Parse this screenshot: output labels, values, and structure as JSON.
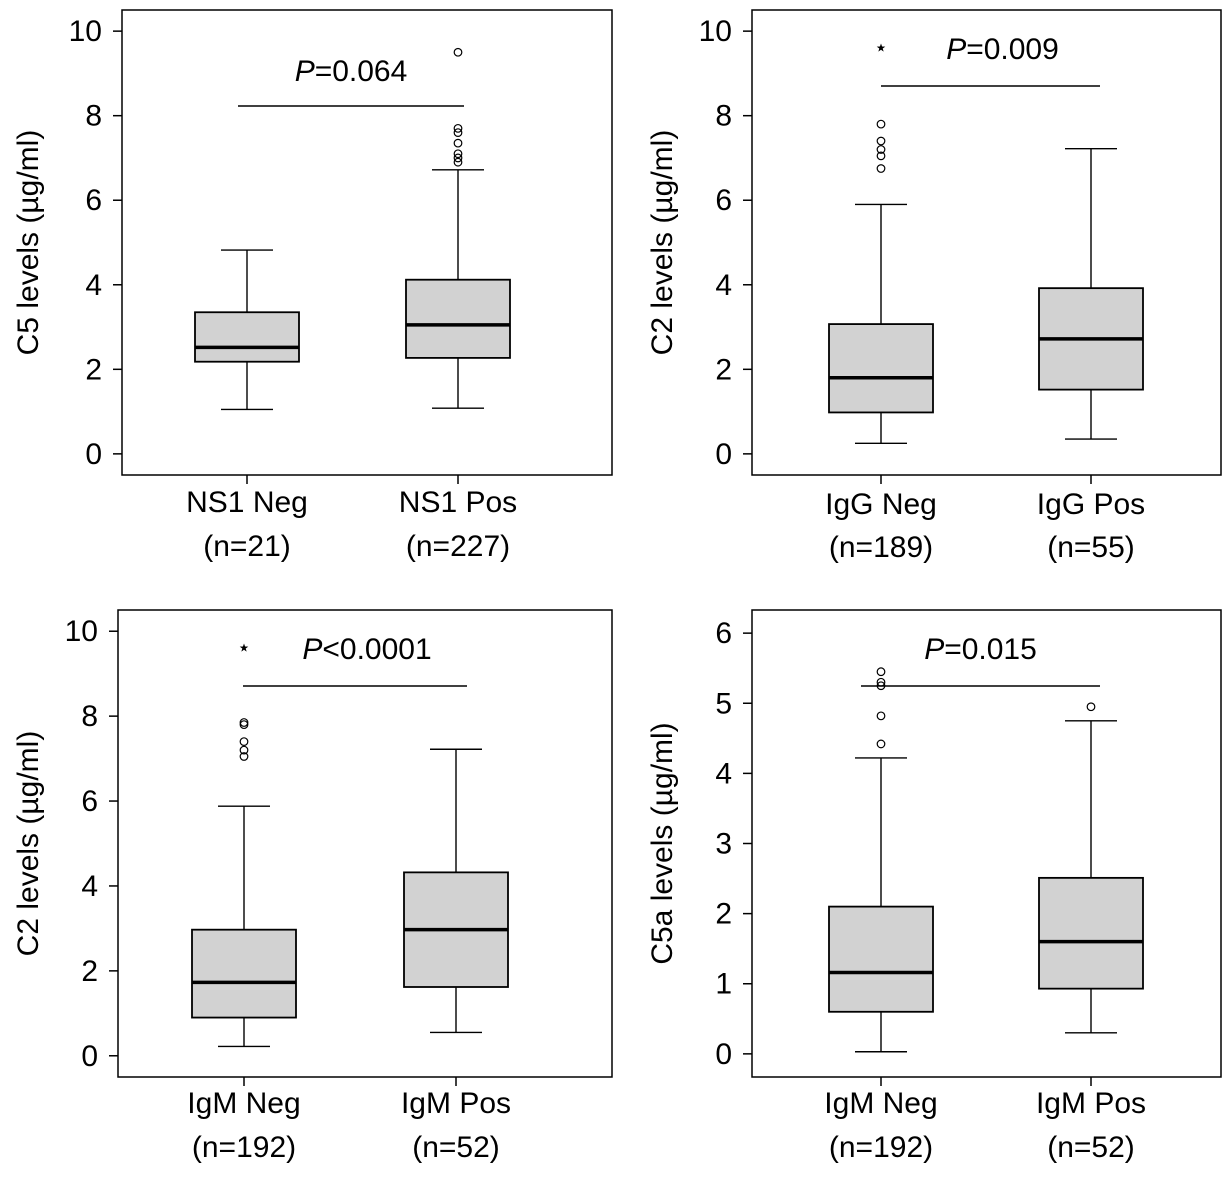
{
  "chart_data": [
    {
      "type": "box",
      "ylabel": "C5 levels (µg/ml)",
      "ylim": [
        -0.5,
        10.5
      ],
      "yticks": [
        0,
        2,
        4,
        6,
        8,
        10
      ],
      "pvalue": {
        "p": "P",
        "rest": "=0.064"
      },
      "star": false,
      "categories": [
        {
          "name": "NS1 Neg",
          "n": "(n=21)",
          "whisker_low": 1.05,
          "q1": 2.18,
          "median": 2.52,
          "q3": 3.35,
          "whisker_high": 4.82,
          "outliers": []
        },
        {
          "name": "NS1 Pos",
          "n": "(n=227)",
          "whisker_low": 1.08,
          "q1": 2.27,
          "median": 3.05,
          "q3": 4.12,
          "whisker_high": 6.72,
          "outliers": [
            6.9,
            7.0,
            7.1,
            7.35,
            7.6,
            7.7,
            9.5
          ]
        }
      ]
    },
    {
      "type": "box",
      "ylabel": "C2 levels (µg/ml)",
      "ylim": [
        -0.5,
        10.5
      ],
      "yticks": [
        0,
        2,
        4,
        6,
        8,
        10
      ],
      "pvalue": {
        "p": "P",
        "rest": "=0.009"
      },
      "star": true,
      "categories": [
        {
          "name": "IgG Neg",
          "n": "(n=189)",
          "whisker_low": 0.25,
          "q1": 0.98,
          "median": 1.8,
          "q3": 3.07,
          "whisker_high": 5.9,
          "outliers": [
            6.75,
            7.05,
            7.2,
            7.4,
            7.8
          ]
        },
        {
          "name": "IgG Pos",
          "n": "(n=55)",
          "whisker_low": 0.35,
          "q1": 1.52,
          "median": 2.72,
          "q3": 3.92,
          "whisker_high": 7.22,
          "outliers": []
        }
      ]
    },
    {
      "type": "box",
      "ylabel": "C2 levels (µg/ml)",
      "ylim": [
        -0.5,
        10.5
      ],
      "yticks": [
        0,
        2,
        4,
        6,
        8,
        10
      ],
      "pvalue": {
        "p": "P",
        "rest": "<0.0001"
      },
      "star": true,
      "categories": [
        {
          "name": "IgM Neg",
          "n": "(n=192)",
          "whisker_low": 0.22,
          "q1": 0.9,
          "median": 1.73,
          "q3": 2.97,
          "whisker_high": 5.88,
          "outliers": [
            7.05,
            7.2,
            7.4,
            7.8,
            7.85
          ]
        },
        {
          "name": "IgM Pos",
          "n": "(n=52)",
          "whisker_low": 0.55,
          "q1": 1.62,
          "median": 2.97,
          "q3": 4.32,
          "whisker_high": 7.22,
          "outliers": []
        }
      ]
    },
    {
      "type": "box",
      "ylabel": "C5a levels (µg/ml)",
      "ylim": [
        -0.33,
        6.33
      ],
      "yticks": [
        0,
        1,
        2,
        3,
        4,
        5,
        6
      ],
      "pvalue": {
        "p": "P",
        "rest": "=0.015"
      },
      "star": false,
      "categories": [
        {
          "name": "IgM Neg",
          "n": "(n=192)",
          "whisker_low": 0.03,
          "q1": 0.6,
          "median": 1.16,
          "q3": 2.1,
          "whisker_high": 4.22,
          "outliers": [
            4.42,
            4.82,
            5.25,
            5.3,
            5.45
          ]
        },
        {
          "name": "IgM Pos",
          "n": "(n=52)",
          "whisker_low": 0.3,
          "q1": 0.93,
          "median": 1.6,
          "q3": 2.51,
          "whisker_high": 4.75,
          "outliers": [
            4.95
          ]
        }
      ]
    }
  ],
  "colors": {
    "box_fill": "#d2d2d2",
    "stroke": "#000000",
    "background": "#ffffff"
  }
}
